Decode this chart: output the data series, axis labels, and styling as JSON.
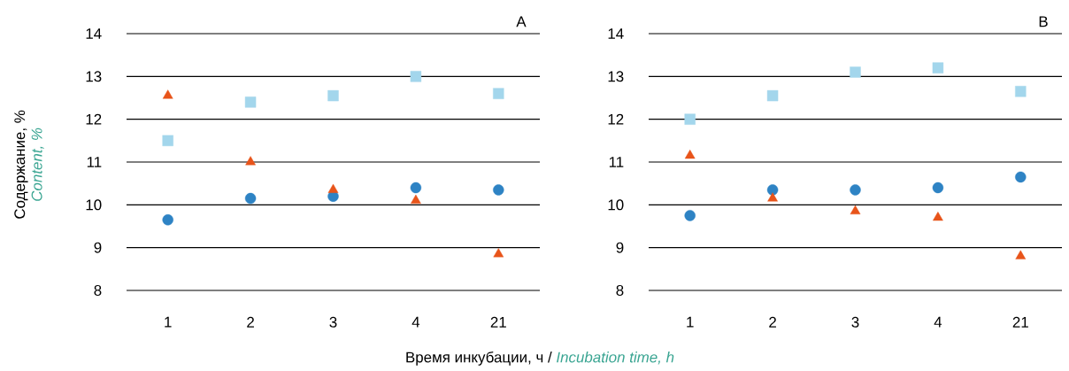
{
  "chart_data": [
    {
      "type": "scatter",
      "title": "A",
      "ylabel": "Содержание, %",
      "xlabel": "Время инкубации, ч /",
      "annotations": [
        "Content, %",
        "Incubation time, h"
      ],
      "categories": [
        "1",
        "2",
        "3",
        "4",
        "21"
      ],
      "ylim": [
        8,
        14
      ],
      "yticks": [
        8,
        9,
        10,
        11,
        12,
        13,
        14
      ],
      "grid": "y",
      "series": [
        {
          "color": "#2e83c4",
          "marker": "circle",
          "values": [
            9.65,
            10.15,
            10.2,
            10.4,
            10.35
          ]
        },
        {
          "color": "#e8541a",
          "marker": "triangle",
          "values": [
            12.55,
            11.0,
            10.35,
            10.1,
            8.85
          ]
        },
        {
          "color": "#a3d6ec",
          "marker": "square",
          "values": [
            11.5,
            12.4,
            12.55,
            13.0,
            12.6
          ]
        }
      ]
    },
    {
      "type": "scatter",
      "title": "B",
      "categories": [
        "1",
        "2",
        "3",
        "4",
        "21"
      ],
      "ylim": [
        8,
        14
      ],
      "yticks": [
        8,
        9,
        10,
        11,
        12,
        13,
        14
      ],
      "grid": "y",
      "series": [
        {
          "color": "#2e83c4",
          "marker": "circle",
          "values": [
            9.75,
            10.35,
            10.35,
            10.4,
            10.65
          ]
        },
        {
          "color": "#e8541a",
          "marker": "triangle",
          "values": [
            11.15,
            10.15,
            9.85,
            9.7,
            8.8
          ]
        },
        {
          "color": "#a3d6ec",
          "marker": "square",
          "values": [
            12.0,
            12.55,
            13.1,
            13.2,
            12.65
          ]
        }
      ]
    }
  ]
}
